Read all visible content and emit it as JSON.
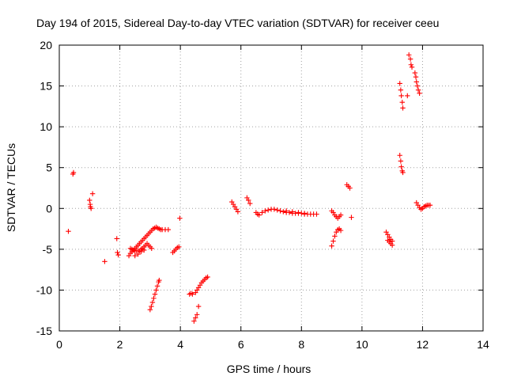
{
  "chart_data": {
    "type": "scatter",
    "title": "Day 194 of 2015, Sidereal Day-to-day VTEC variation (SDTVAR) for receiver ceeu",
    "xlabel": "GPS time / hours",
    "ylabel": "SDTVAR / TECUs",
    "xlim": [
      0,
      14
    ],
    "ylim": [
      -15,
      20
    ],
    "xticks": [
      0,
      2,
      4,
      6,
      8,
      10,
      12,
      14
    ],
    "yticks": [
      -15,
      -10,
      -5,
      0,
      5,
      10,
      15,
      20
    ],
    "xtick_labels": [
      "0",
      "2",
      "4",
      "6",
      "8",
      "10",
      "12",
      "14"
    ],
    "ytick_labels": [
      "-15",
      "-10",
      "-5",
      "0",
      "5",
      "10",
      "15",
      "20"
    ],
    "grid": true,
    "marker": "+",
    "color": "#ff0000",
    "series": [
      {
        "name": "SDTVAR",
        "x": [
          0.3,
          0.45,
          0.47,
          1.0,
          1.02,
          1.03,
          1.05,
          1.1,
          1.5,
          1.9,
          1.92,
          1.95,
          2.3,
          2.35,
          2.4,
          2.45,
          2.5,
          2.55,
          2.6,
          2.65,
          2.7,
          2.75,
          2.8,
          2.85,
          2.9,
          2.95,
          3.0,
          3.05,
          3.1,
          3.15,
          3.2,
          3.25,
          3.3,
          3.35,
          3.4,
          3.5,
          3.6,
          2.35,
          2.4,
          2.45,
          2.5,
          2.55,
          2.6,
          2.65,
          2.7,
          2.75,
          2.8,
          2.85,
          2.9,
          2.95,
          3.0,
          3.05,
          2.5,
          2.6,
          2.7,
          2.8,
          3.0,
          3.04,
          3.08,
          3.12,
          3.16,
          3.2,
          3.24,
          3.28,
          3.3,
          3.75,
          3.8,
          3.85,
          3.9,
          3.95,
          3.98,
          4.3,
          4.35,
          4.4,
          4.45,
          4.5,
          4.55,
          4.6,
          4.5,
          4.55,
          4.6,
          4.65,
          4.7,
          4.75,
          4.8,
          4.85,
          4.9,
          5.7,
          5.75,
          5.8,
          5.85,
          5.9,
          6.2,
          6.25,
          6.3,
          6.5,
          6.55,
          6.6,
          6.7,
          6.8,
          6.9,
          7.0,
          7.1,
          7.2,
          7.3,
          7.4,
          7.5,
          7.6,
          7.7,
          7.8,
          7.9,
          8.0,
          8.1,
          8.2,
          8.3,
          8.4,
          8.5,
          7.5,
          7.7,
          7.9,
          8.1,
          9.0,
          9.05,
          9.1,
          9.15,
          9.2,
          9.25,
          9.3,
          9.0,
          9.05,
          9.1,
          9.15,
          9.2,
          9.25,
          9.3,
          9.5,
          9.55,
          9.6,
          9.65,
          10.8,
          10.85,
          10.9,
          10.95,
          11.0,
          10.85,
          10.9,
          10.95,
          11.0,
          11.25,
          11.28,
          11.3,
          11.33,
          11.35,
          11.25,
          11.28,
          11.3,
          11.33,
          11.35,
          11.5,
          11.55,
          11.6,
          11.62,
          11.65,
          11.75,
          11.78,
          11.8,
          11.83,
          11.86,
          11.9,
          11.8,
          11.85,
          11.9,
          11.95,
          12.0,
          12.05,
          12.1,
          12.15,
          12.2,
          12.25
        ],
        "y": [
          -2.8,
          4.2,
          4.4,
          1.0,
          0.5,
          0.2,
          0.0,
          1.8,
          -6.5,
          -3.7,
          -5.4,
          -5.7,
          -5.8,
          -5.5,
          -5.3,
          -5.1,
          -4.9,
          -4.7,
          -4.5,
          -4.3,
          -4.1,
          -3.9,
          -3.7,
          -3.5,
          -3.3,
          -3.1,
          -2.9,
          -2.7,
          -2.5,
          -2.4,
          -2.3,
          -2.4,
          -2.5,
          -2.6,
          -2.6,
          -2.6,
          -2.6,
          -4.9,
          -5.0,
          -5.1,
          -5.2,
          -5.2,
          -5.2,
          -5.2,
          -5.0,
          -4.9,
          -4.7,
          -4.5,
          -4.3,
          -4.5,
          -4.7,
          -4.9,
          -5.8,
          -5.6,
          -5.3,
          -5.1,
          -12.4,
          -12.0,
          -11.5,
          -11.0,
          -10.5,
          -10.0,
          -9.5,
          -9.0,
          -8.8,
          -5.4,
          -5.2,
          -5.0,
          -4.8,
          -4.7,
          -1.2,
          -10.5,
          -10.4,
          -10.5,
          -13.8,
          -13.4,
          -13.0,
          -12.0,
          -10.3,
          -10.0,
          -9.7,
          -9.4,
          -9.1,
          -8.9,
          -8.7,
          -8.5,
          -8.4,
          0.8,
          0.5,
          0.2,
          -0.1,
          -0.4,
          1.3,
          1.0,
          0.6,
          -0.5,
          -0.7,
          -0.8,
          -0.5,
          -0.3,
          -0.2,
          -0.1,
          -0.1,
          -0.2,
          -0.3,
          -0.4,
          -0.5,
          -0.5,
          -0.6,
          -0.6,
          -0.6,
          -0.6,
          -0.7,
          -0.7,
          -0.7,
          -0.7,
          -0.7,
          -0.3,
          -0.4,
          -0.5,
          -0.6,
          -0.3,
          -0.5,
          -0.8,
          -1.0,
          -1.2,
          -1.0,
          -0.8,
          -4.6,
          -4.0,
          -3.4,
          -2.9,
          -2.6,
          -2.5,
          -2.7,
          2.9,
          2.7,
          2.5,
          -1.1,
          -2.9,
          -3.2,
          -3.5,
          -3.8,
          -4.0,
          -3.9,
          -4.1,
          -4.3,
          -4.5,
          15.3,
          14.5,
          13.8,
          13.0,
          12.3,
          6.5,
          5.8,
          5.1,
          4.6,
          4.4,
          13.8,
          18.8,
          18.3,
          17.6,
          17.3,
          16.6,
          16.1,
          15.5,
          15.0,
          14.5,
          14.1,
          0.7,
          0.4,
          0.1,
          -0.1,
          0.0,
          0.2,
          0.3,
          0.4,
          0.4,
          0.4
        ]
      }
    ]
  }
}
